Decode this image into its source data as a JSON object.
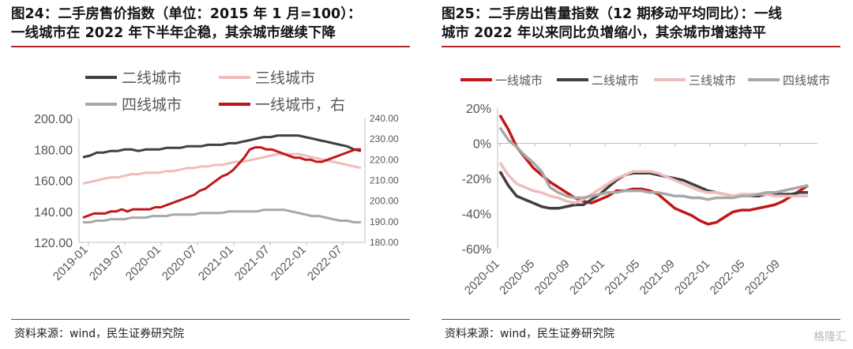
{
  "charts": [
    {
      "title_lines": [
        "图24：二手房售价指数（单位：2015 年 1 月=100）：",
        "一线城市在 2022 年下半年企稳，其余城市继续下降"
      ],
      "source": "资料来源：wind，民生证券研究院",
      "chart_data": {
        "type": "line",
        "x_labels": [
          "2019-01",
          "2019-07",
          "2020-01",
          "2020-07",
          "2021-01",
          "2021-07",
          "2022-01",
          "2022-07"
        ],
        "y_left": {
          "ylim": [
            120,
            200
          ],
          "ticks": [
            "120.00",
            "140.00",
            "160.00",
            "180.00",
            "200.00"
          ]
        },
        "y_right": {
          "ylim": [
            180,
            240
          ],
          "ticks": [
            "180.00",
            "190.00",
            "200.00",
            "210.00",
            "220.00",
            "230.00",
            "240.00"
          ]
        },
        "legend": {
          "position": "top"
        },
        "series": [
          {
            "name": "二线城市",
            "axis": "left",
            "color": "#404040",
            "values": [
              175,
              176,
              178,
              178,
              179,
              179,
              180,
              180,
              179,
              180,
              180,
              180,
              181,
              181,
              181,
              182,
              182,
              182,
              183,
              183,
              183,
              184,
              184,
              185,
              186,
              187,
              188,
              188,
              189,
              189,
              189,
              189,
              188,
              187,
              186,
              185,
              184,
              183,
              182,
              180,
              179
            ]
          },
          {
            "name": "三线城市",
            "axis": "left",
            "color": "#f0bcbc",
            "values": [
              158,
              159,
              160,
              161,
              162,
              162,
              163,
              164,
              164,
              165,
              165,
              165,
              166,
              166,
              167,
              168,
              168,
              169,
              169,
              170,
              170,
              171,
              172,
              172,
              173,
              174,
              175,
              176,
              177,
              177,
              177,
              177,
              176,
              175,
              174,
              173,
              172,
              171,
              170,
              169,
              168
            ]
          },
          {
            "name": "四线城市",
            "axis": "left",
            "color": "#a8a8a8",
            "values": [
              133,
              133,
              134,
              134,
              135,
              135,
              135,
              136,
              136,
              136,
              137,
              137,
              137,
              138,
              138,
              138,
              138,
              139,
              139,
              139,
              139,
              140,
              140,
              140,
              140,
              140,
              141,
              141,
              141,
              141,
              140,
              139,
              138,
              137,
              137,
              136,
              135,
              134,
              134,
              133,
              133
            ]
          },
          {
            "name": "一线城市，右",
            "axis": "right",
            "color": "#c01818",
            "values": [
              192,
              193,
              194,
              194,
              194,
              195,
              195,
              196,
              195,
              196,
              196,
              196,
              196,
              197,
              197,
              198,
              199,
              200,
              201,
              202,
              203,
              205,
              206,
              208,
              210,
              212,
              213,
              215,
              218,
              221,
              225,
              226,
              226,
              225,
              225,
              224,
              223,
              222,
              221,
              221,
              220,
              220,
              219,
              219,
              220,
              221,
              222,
              223,
              224,
              225,
              225
            ]
          }
        ]
      }
    },
    {
      "title_lines": [
        "图25：二手房出售量指数（12 期移动平均同比）：一线",
        "城市 2022 年以来同比负增缩小，其余城市增速持平"
      ],
      "source": "资料来源：wind，民生证券研究院",
      "chart_data": {
        "type": "line",
        "x_labels": [
          "2020-01",
          "2020-05",
          "2020-09",
          "2021-01",
          "2021-05",
          "2021-09",
          "2022-01",
          "2022-05",
          "2022-09"
        ],
        "y": {
          "ylim": [
            -60,
            20
          ],
          "ticks": [
            "-60%",
            "-40%",
            "-20%",
            "0%",
            "20%"
          ]
        },
        "legend": {
          "position": "top"
        },
        "series": [
          {
            "name": "一线城市",
            "color": "#c01818",
            "values": [
              16,
              8,
              -2,
              -8,
              -14,
              -18,
              -22,
              -25,
              -28,
              -31,
              -33,
              -34,
              -32,
              -30,
              -27,
              -27,
              -26,
              -26,
              -27,
              -29,
              -33,
              -37,
              -39,
              -41,
              -44,
              -46,
              -45,
              -42,
              -39,
              -38,
              -38,
              -37,
              -36,
              -35,
              -33,
              -30,
              -27,
              -24
            ]
          },
          {
            "name": "二线城市",
            "color": "#404040",
            "values": [
              -16,
              -24,
              -30,
              -32,
              -34,
              -36,
              -37,
              -37,
              -36,
              -35,
              -35,
              -32,
              -29,
              -25,
              -21,
              -18,
              -17,
              -17,
              -17,
              -18,
              -19,
              -20,
              -21,
              -23,
              -25,
              -27,
              -28,
              -29,
              -30,
              -30,
              -30,
              -30,
              -29,
              -29,
              -29,
              -29,
              -28,
              -28
            ]
          },
          {
            "name": "三线城市",
            "color": "#f0bcbc",
            "values": [
              -11,
              -18,
              -23,
              -25,
              -27,
              -28,
              -30,
              -31,
              -33,
              -34,
              -32,
              -29,
              -26,
              -23,
              -20,
              -18,
              -16,
              -16,
              -16,
              -17,
              -19,
              -21,
              -23,
              -25,
              -27,
              -28,
              -28,
              -29,
              -30,
              -29,
              -29,
              -29,
              -29,
              -30,
              -30,
              -30,
              -30,
              -30
            ]
          },
          {
            "name": "四线城市",
            "color": "#a8a8a8",
            "values": [
              9,
              2,
              -2,
              -7,
              -11,
              -16,
              -25,
              -28,
              -30,
              -31,
              -31,
              -30,
              -29,
              -28,
              -28,
              -27,
              -27,
              -27,
              -28,
              -28,
              -29,
              -30,
              -30,
              -31,
              -31,
              -32,
              -31,
              -31,
              -31,
              -30,
              -30,
              -29,
              -28,
              -28,
              -27,
              -26,
              -25,
              -24
            ]
          }
        ]
      }
    }
  ],
  "watermark": "格隆汇"
}
